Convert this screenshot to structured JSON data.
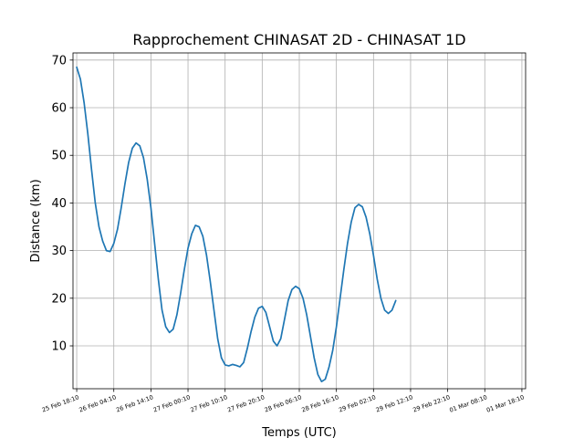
{
  "chart_data": {
    "type": "line",
    "title": "Rapprochement CHINASAT 2D - CHINASAT 1D",
    "xlabel": "Temps (UTC)",
    "ylabel": "Distance (km)",
    "xlim_hours": [
      -1,
      121
    ],
    "ylim": [
      1,
      71.5
    ],
    "grid": true,
    "yticks": [
      10,
      20,
      30,
      40,
      50,
      60,
      70
    ],
    "xticks": [
      {
        "h": 0,
        "label": "25 Feb 18:10"
      },
      {
        "h": 10,
        "label": "26 Feb 04:10"
      },
      {
        "h": 20,
        "label": "26 Feb 14:10"
      },
      {
        "h": 30,
        "label": "27 Feb 00:10"
      },
      {
        "h": 40,
        "label": "27 Feb 10:10"
      },
      {
        "h": 50,
        "label": "27 Feb 20:10"
      },
      {
        "h": 60,
        "label": "28 Feb 06:10"
      },
      {
        "h": 70,
        "label": "28 Feb 16:10"
      },
      {
        "h": 80,
        "label": "29 Feb 02:10"
      },
      {
        "h": 90,
        "label": "29 Feb 12:10"
      },
      {
        "h": 100,
        "label": "29 Feb 22:10"
      },
      {
        "h": 110,
        "label": "01 Mar 08:10"
      },
      {
        "h": 120,
        "label": "01 Mar 18:10"
      }
    ],
    "series": [
      {
        "color": "#1f77b4",
        "points": [
          [
            0,
            68.5
          ],
          [
            1,
            66
          ],
          [
            2,
            61
          ],
          [
            3,
            54.5
          ],
          [
            4,
            47
          ],
          [
            5,
            40
          ],
          [
            6,
            35
          ],
          [
            7,
            32
          ],
          [
            8,
            30
          ],
          [
            9,
            29.8
          ],
          [
            10,
            31.5
          ],
          [
            11,
            34.5
          ],
          [
            12,
            39
          ],
          [
            13,
            44
          ],
          [
            14,
            48.5
          ],
          [
            15,
            51.5
          ],
          [
            16,
            52.6
          ],
          [
            17,
            52
          ],
          [
            18,
            49.5
          ],
          [
            19,
            45
          ],
          [
            20,
            39
          ],
          [
            21,
            31.5
          ],
          [
            22,
            24
          ],
          [
            23,
            17.5
          ],
          [
            24,
            14
          ],
          [
            25,
            12.8
          ],
          [
            26,
            13.5
          ],
          [
            27,
            16.5
          ],
          [
            28,
            21
          ],
          [
            29,
            26
          ],
          [
            30,
            30.5
          ],
          [
            31,
            33.5
          ],
          [
            32,
            35.3
          ],
          [
            33,
            35
          ],
          [
            34,
            33
          ],
          [
            35,
            29
          ],
          [
            36,
            23.5
          ],
          [
            37,
            17.5
          ],
          [
            38,
            11.5
          ],
          [
            39,
            7.5
          ],
          [
            40,
            6
          ],
          [
            41,
            5.8
          ],
          [
            42,
            6.1
          ],
          [
            43,
            5.9
          ],
          [
            44,
            5.6
          ],
          [
            45,
            6.5
          ],
          [
            46,
            9.5
          ],
          [
            47,
            13
          ],
          [
            48,
            16
          ],
          [
            49,
            17.9
          ],
          [
            50,
            18.3
          ],
          [
            51,
            17
          ],
          [
            52,
            14
          ],
          [
            53,
            11
          ],
          [
            54,
            10
          ],
          [
            55,
            11.5
          ],
          [
            56,
            15.5
          ],
          [
            57,
            19.5
          ],
          [
            58,
            21.8
          ],
          [
            59,
            22.5
          ],
          [
            60,
            22
          ],
          [
            61,
            20
          ],
          [
            62,
            16.5
          ],
          [
            63,
            12
          ],
          [
            64,
            7.5
          ],
          [
            65,
            4
          ],
          [
            66,
            2.5
          ],
          [
            67,
            3
          ],
          [
            68,
            5.5
          ],
          [
            69,
            9
          ],
          [
            70,
            14
          ],
          [
            71,
            20
          ],
          [
            72,
            26
          ],
          [
            73,
            31.5
          ],
          [
            74,
            36
          ],
          [
            75,
            39
          ],
          [
            76,
            39.7
          ],
          [
            77,
            39.2
          ],
          [
            78,
            37
          ],
          [
            79,
            33.5
          ],
          [
            80,
            29
          ],
          [
            81,
            24
          ],
          [
            82,
            20
          ],
          [
            83,
            17.5
          ],
          [
            84,
            16.8
          ],
          [
            85,
            17.5
          ],
          [
            86,
            19.5
          ]
        ]
      }
    ]
  }
}
